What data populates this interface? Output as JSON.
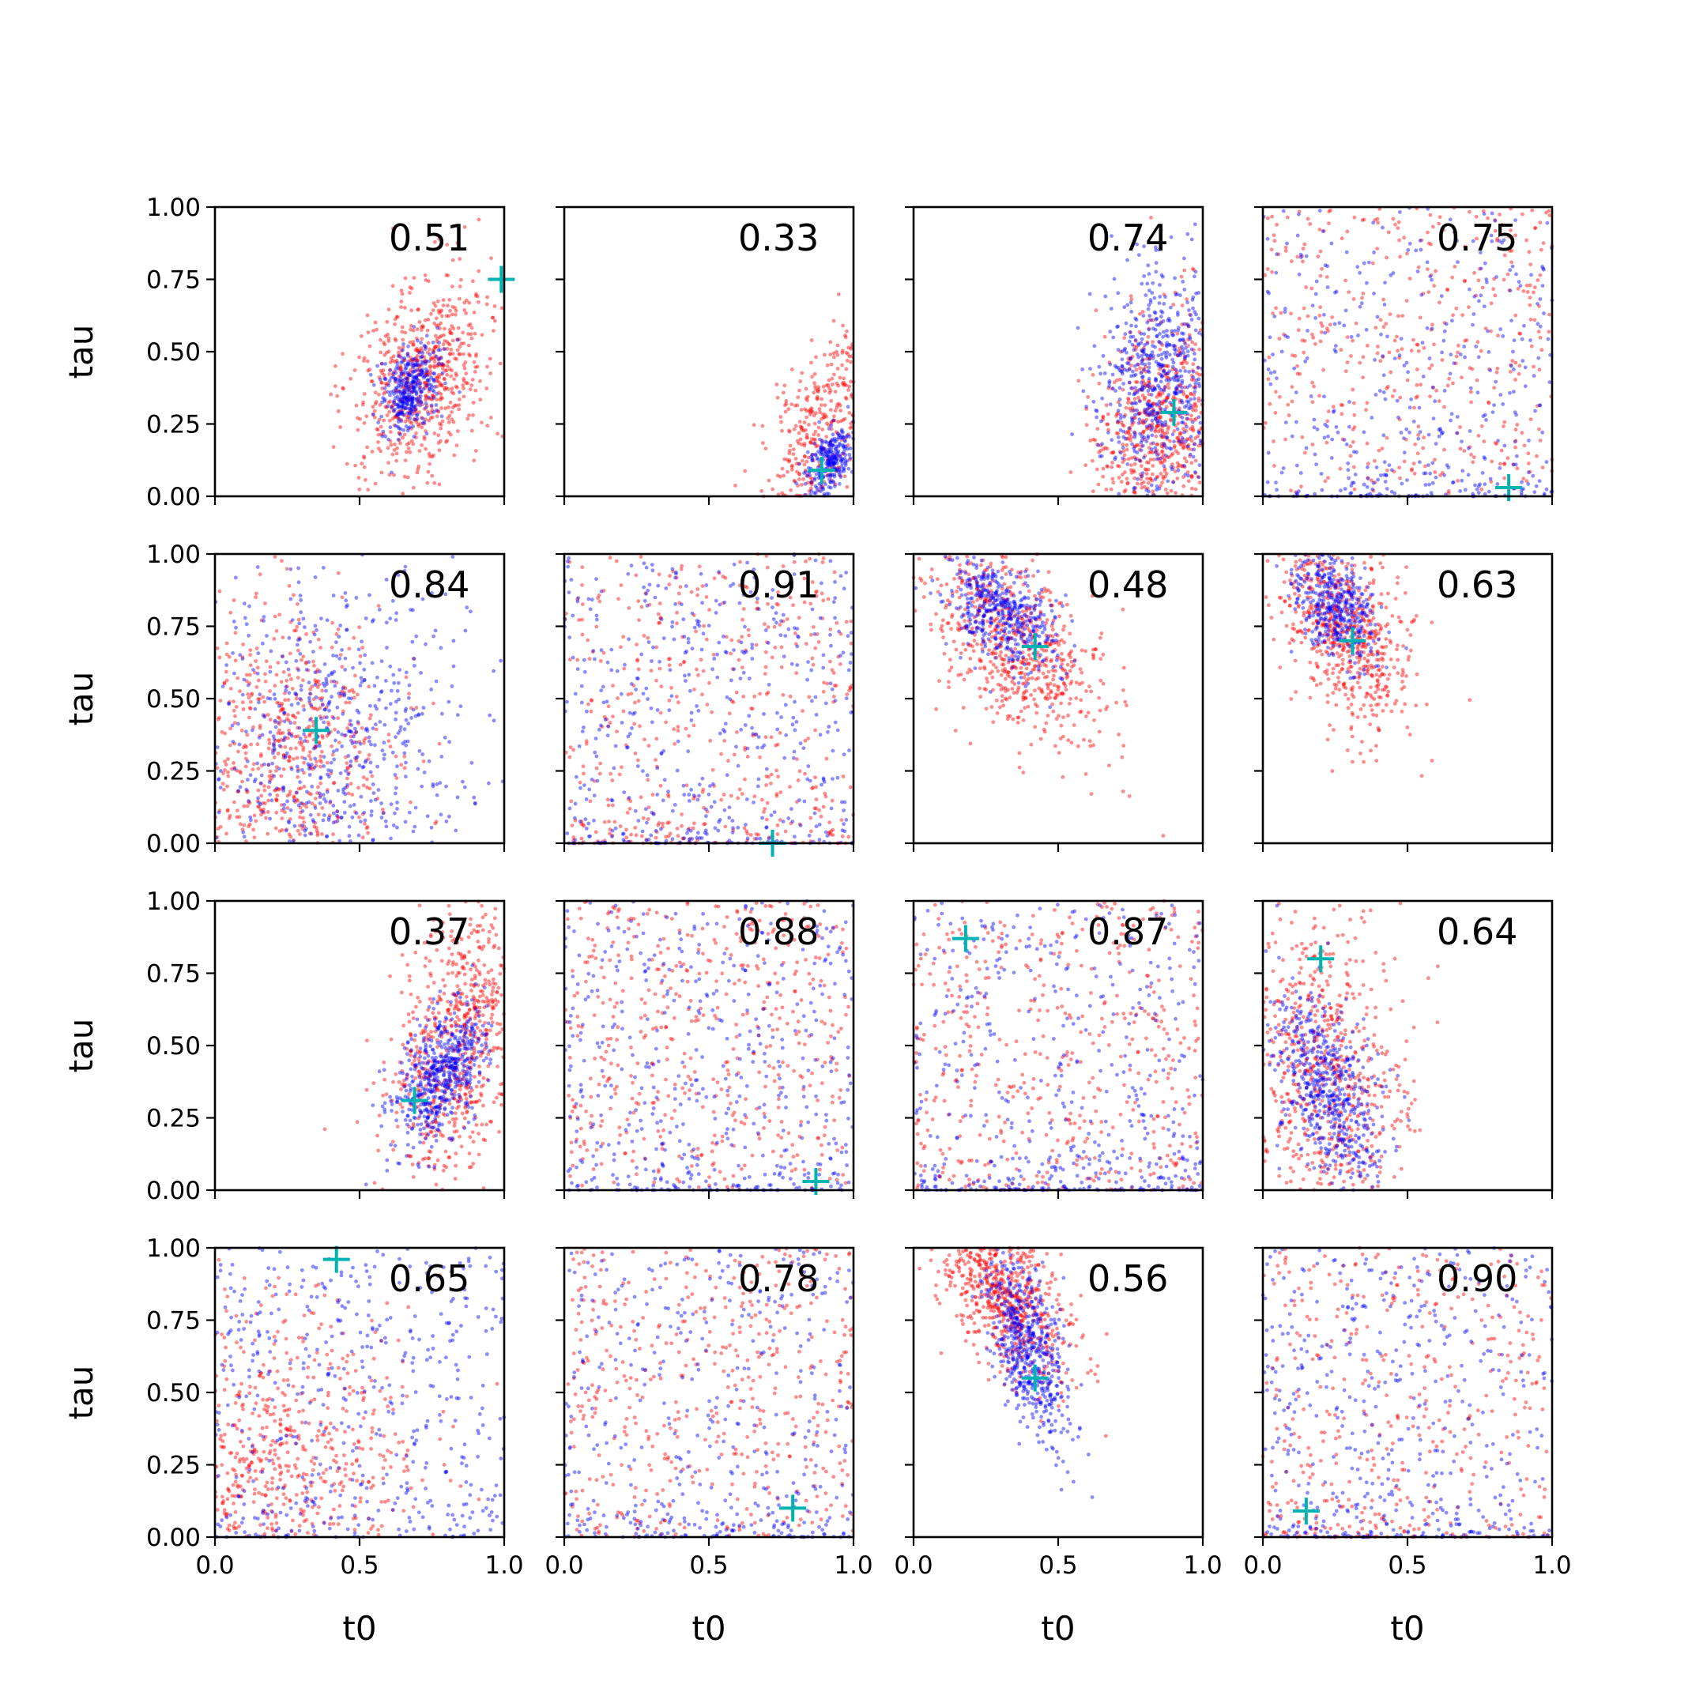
{
  "chart_data": {
    "type": "scatter",
    "grid": false,
    "layout": "4x4 grid of panels, shared axes",
    "xlabel": "t0",
    "ylabel": "tau",
    "xlim": [
      0,
      1
    ],
    "ylim": [
      0,
      1
    ],
    "xticks": [
      "0.0",
      "0.5",
      "1.0"
    ],
    "yticks": [
      "0.00",
      "0.25",
      "0.50",
      "0.75",
      "1.00"
    ],
    "colors": {
      "series_a": "#ff0000",
      "series_b": "#0000ff",
      "truth_marker": "#00b3b3"
    },
    "panels": [
      {
        "value_label": "0.51",
        "truth": [
          0.99,
          0.75
        ],
        "red": {
          "type": "gauss",
          "mx": 0.72,
          "my": 0.42,
          "sx": 0.12,
          "sy": 0.18,
          "rho": 0.4,
          "n": 650
        },
        "blue": {
          "type": "gauss",
          "mx": 0.68,
          "my": 0.38,
          "sx": 0.05,
          "sy": 0.08,
          "rho": 0.3,
          "n": 350
        }
      },
      {
        "value_label": "0.33",
        "truth": [
          0.89,
          0.09
        ],
        "red": {
          "type": "gauss",
          "mx": 0.88,
          "my": 0.22,
          "sx": 0.1,
          "sy": 0.18,
          "rho": 0.6,
          "n": 300
        },
        "blue": {
          "type": "gauss",
          "mx": 0.92,
          "my": 0.12,
          "sx": 0.04,
          "sy": 0.06,
          "rho": 0.4,
          "n": 250
        }
      },
      {
        "value_label": "0.74",
        "truth": [
          0.9,
          0.29
        ],
        "red": {
          "type": "gauss",
          "mx": 0.85,
          "my": 0.25,
          "sx": 0.12,
          "sy": 0.2,
          "rho": 0.3,
          "n": 550
        },
        "blue": {
          "type": "gauss",
          "mx": 0.85,
          "my": 0.4,
          "sx": 0.1,
          "sy": 0.2,
          "rho": 0.0,
          "n": 550
        }
      },
      {
        "value_label": "0.75",
        "truth": [
          0.85,
          0.03
        ],
        "red": {
          "type": "uniform",
          "n": 420
        },
        "blue": {
          "type": "uniform",
          "n": 420,
          "bottom": 0.25
        }
      },
      {
        "value_label": "0.84",
        "truth": [
          0.35,
          0.39
        ],
        "red": {
          "type": "gauss",
          "mx": 0.25,
          "my": 0.3,
          "sx": 0.18,
          "sy": 0.25,
          "rho": 0.0,
          "n": 550
        },
        "blue": {
          "type": "gauss",
          "mx": 0.4,
          "my": 0.35,
          "sx": 0.25,
          "sy": 0.3,
          "rho": 0.0,
          "n": 550
        }
      },
      {
        "value_label": "0.91",
        "truth": [
          0.72,
          0.0
        ],
        "red": {
          "type": "uniform",
          "n": 480,
          "bottom": 0.15
        },
        "blue": {
          "type": "uniform",
          "n": 480,
          "bottom": 0.2
        }
      },
      {
        "value_label": "0.48",
        "truth": [
          0.42,
          0.68
        ],
        "red": {
          "type": "gauss",
          "mx": 0.35,
          "my": 0.7,
          "sx": 0.15,
          "sy": 0.18,
          "rho": -0.6,
          "n": 650
        },
        "blue": {
          "type": "gauss",
          "mx": 0.3,
          "my": 0.8,
          "sx": 0.1,
          "sy": 0.1,
          "rho": -0.5,
          "n": 450
        }
      },
      {
        "value_label": "0.63",
        "truth": [
          0.31,
          0.7
        ],
        "red": {
          "type": "gauss",
          "mx": 0.28,
          "my": 0.75,
          "sx": 0.12,
          "sy": 0.18,
          "rho": -0.5,
          "n": 600
        },
        "blue": {
          "type": "gauss",
          "mx": 0.25,
          "my": 0.82,
          "sx": 0.07,
          "sy": 0.1,
          "rho": -0.4,
          "n": 400
        }
      },
      {
        "value_label": "0.37",
        "truth": [
          0.69,
          0.31
        ],
        "red": {
          "type": "gauss",
          "mx": 0.85,
          "my": 0.5,
          "sx": 0.12,
          "sy": 0.25,
          "rho": 0.4,
          "n": 650
        },
        "blue": {
          "type": "gauss",
          "mx": 0.78,
          "my": 0.4,
          "sx": 0.08,
          "sy": 0.12,
          "rho": 0.5,
          "n": 550
        }
      },
      {
        "value_label": "0.88",
        "truth": [
          0.87,
          0.03
        ],
        "red": {
          "type": "uniform",
          "n": 480
        },
        "blue": {
          "type": "uniform",
          "n": 480,
          "bottom": 0.2
        }
      },
      {
        "value_label": "0.87",
        "truth": [
          0.18,
          0.87
        ],
        "red": {
          "type": "uniform",
          "n": 480,
          "bottom": 0.1
        },
        "blue": {
          "type": "uniform",
          "n": 480,
          "bottom": 0.3
        }
      },
      {
        "value_label": "0.64",
        "truth": [
          0.2,
          0.8
        ],
        "red": {
          "type": "gauss",
          "mx": 0.2,
          "my": 0.4,
          "sx": 0.15,
          "sy": 0.3,
          "rho": -0.2,
          "n": 600
        },
        "blue": {
          "type": "gauss",
          "mx": 0.22,
          "my": 0.35,
          "sx": 0.1,
          "sy": 0.18,
          "rho": -0.5,
          "n": 550
        }
      },
      {
        "value_label": "0.65",
        "truth": [
          0.42,
          0.96
        ],
        "red": {
          "type": "gauss",
          "mx": 0.2,
          "my": 0.25,
          "sx": 0.25,
          "sy": 0.25,
          "rho": 0.0,
          "n": 500
        },
        "blue": {
          "type": "uniform",
          "n": 480,
          "bottom": 0.1
        }
      },
      {
        "value_label": "0.78",
        "truth": [
          0.79,
          0.1
        ],
        "red": {
          "type": "uniform",
          "n": 460
        },
        "blue": {
          "type": "uniform",
          "n": 420,
          "bottom": 0.25
        }
      },
      {
        "value_label": "0.56",
        "truth": [
          0.42,
          0.55
        ],
        "red": {
          "type": "gauss",
          "mx": 0.3,
          "my": 0.85,
          "sx": 0.12,
          "sy": 0.15,
          "rho": -0.6,
          "n": 600
        },
        "blue": {
          "type": "gauss",
          "mx": 0.4,
          "my": 0.65,
          "sx": 0.07,
          "sy": 0.15,
          "rho": -0.5,
          "n": 550
        }
      },
      {
        "value_label": "0.90",
        "truth": [
          0.15,
          0.09
        ],
        "red": {
          "type": "uniform",
          "n": 420,
          "bottom": 0.15
        },
        "blue": {
          "type": "uniform",
          "n": 480,
          "bottom": 0.2
        }
      }
    ]
  }
}
